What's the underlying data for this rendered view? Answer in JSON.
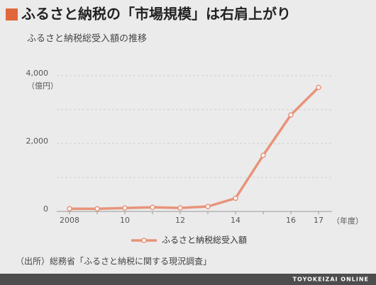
{
  "chart_data": {
    "type": "line",
    "title": "ふるさと納税の「市場規模」は右肩上がり",
    "subtitle": "ふるさと納税総受入額の推移",
    "y_unit": "（億円）",
    "x_unit": "（年度）",
    "categories": [
      "2008",
      null,
      "10",
      null,
      "12",
      null,
      "14",
      null,
      "16",
      "17"
    ],
    "series": [
      {
        "name": "ふるさと納税総受入額",
        "color": "#e8937a",
        "values": [
          81,
          77,
          102,
          122,
          104,
          146,
          389,
          1653,
          2844,
          3653
        ]
      }
    ],
    "ylim": [
      0,
      4000
    ],
    "yticks": [
      0,
      {
        "value": 2000,
        "label": "2,000"
      },
      {
        "value": 4000,
        "label": "4,000"
      }
    ],
    "minor_yticks": [
      1000,
      3000
    ],
    "grid": true,
    "source": "（出所）総務省「ふるさと納税に関する現況調査」",
    "footer": "TOYOKEIZAI ONLINE"
  }
}
